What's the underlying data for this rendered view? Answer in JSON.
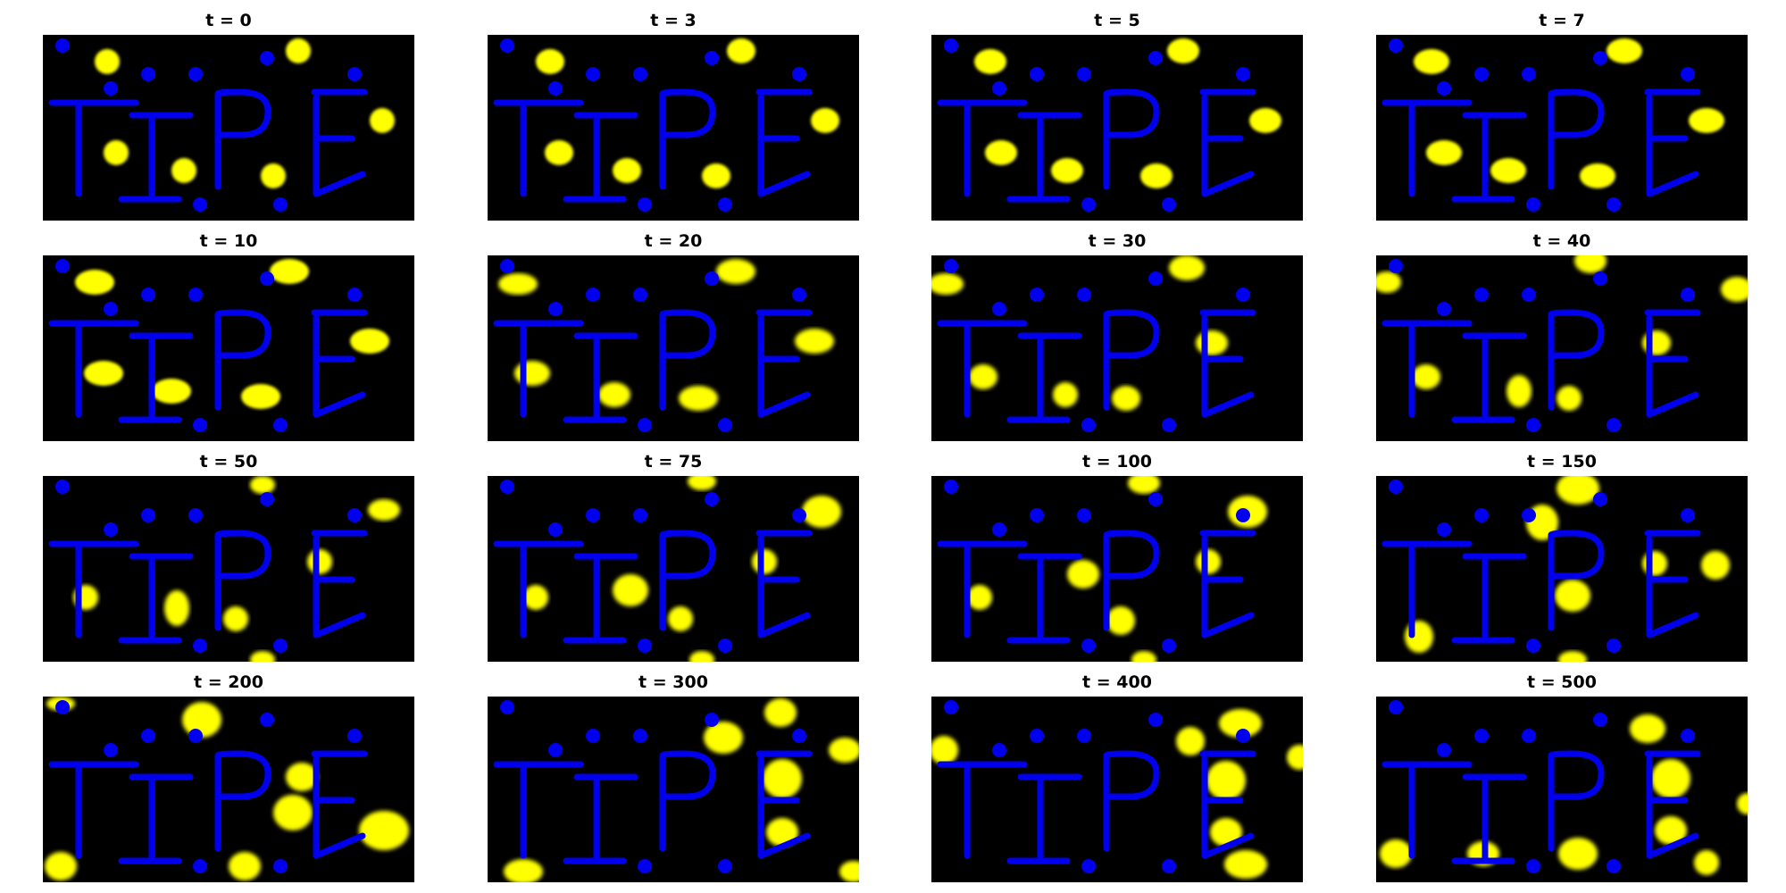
{
  "figure": {
    "panels": [
      {
        "title": "t = 0"
      },
      {
        "title": "t = 3"
      },
      {
        "title": "t = 5"
      },
      {
        "title": "t = 7"
      },
      {
        "title": "t = 10"
      },
      {
        "title": "t = 20"
      },
      {
        "title": "t = 30"
      },
      {
        "title": "t = 40"
      },
      {
        "title": "t = 50"
      },
      {
        "title": "t = 75"
      },
      {
        "title": "t = 100"
      },
      {
        "title": "t = 150"
      },
      {
        "title": "t = 200"
      },
      {
        "title": "t = 300"
      },
      {
        "title": "t = 400"
      },
      {
        "title": "t = 500"
      }
    ],
    "colors": {
      "background": "#000000",
      "obstacle": "#0000ee",
      "wave": "#ffff00"
    }
  }
}
